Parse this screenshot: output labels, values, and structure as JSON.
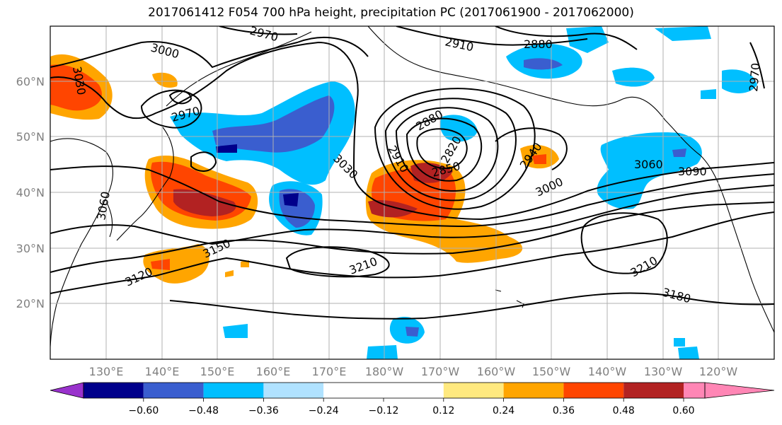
{
  "title": "2017061412 F054 700 hPa height, precipitation PC (2017061900 - 2017062000)",
  "map": {
    "lat_ticks": [
      "60°N",
      "50°N",
      "40°N",
      "30°N",
      "20°N"
    ],
    "lon_ticks": [
      "130°E",
      "140°E",
      "150°E",
      "160°E",
      "170°E",
      "180°W",
      "170°W",
      "160°W",
      "150°W",
      "140°W",
      "130°W",
      "120°W"
    ],
    "contour_labels": [
      "3000",
      "3030",
      "2970",
      "2970",
      "2910",
      "2880",
      "2880",
      "2820",
      "2850",
      "2910",
      "3030",
      "2940",
      "3000",
      "3060",
      "3090",
      "2970",
      "3060",
      "3150",
      "3120",
      "3210",
      "3210",
      "3180"
    ]
  },
  "colorbar": {
    "ticks": [
      "−0.60",
      "−0.48",
      "−0.36",
      "−0.24",
      "−0.12",
      "0.12",
      "0.24",
      "0.36",
      "0.48",
      "0.60"
    ],
    "colors": [
      "#9932cc",
      "#00008b",
      "#3a5ecf",
      "#00bfff",
      "#b0e2ff",
      "#ffffff",
      "#ffe97f",
      "#ffa500",
      "#ff4500",
      "#b22222",
      "#ff86b5"
    ]
  }
}
